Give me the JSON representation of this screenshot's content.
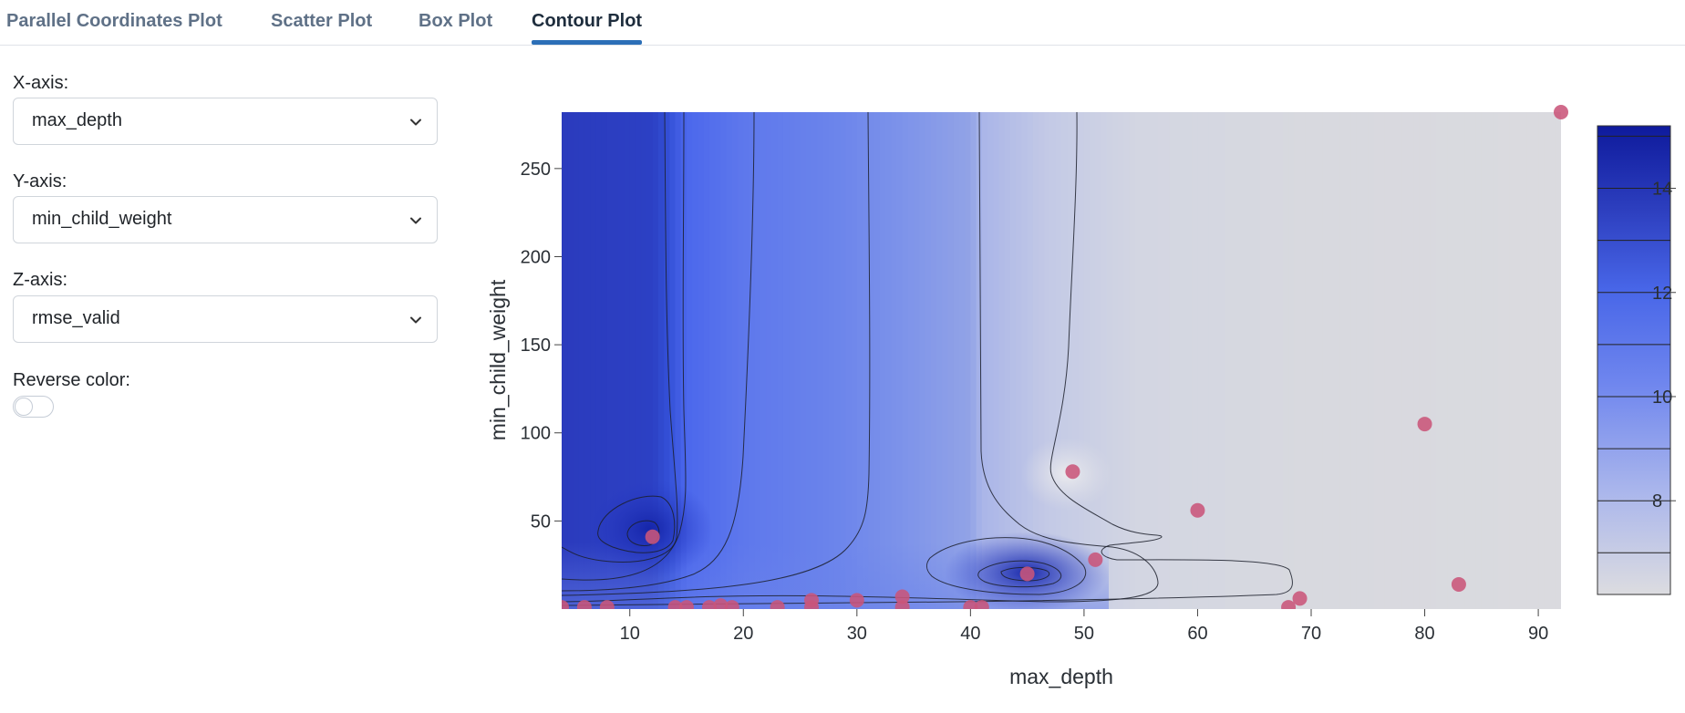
{
  "tabs": [
    {
      "label": "Parallel Coordinates Plot"
    },
    {
      "label": "Scatter Plot"
    },
    {
      "label": "Box Plot"
    },
    {
      "label": "Contour Plot"
    }
  ],
  "active_tab": 3,
  "controls": {
    "x_axis": {
      "label": "X-axis:",
      "value": "max_depth"
    },
    "y_axis": {
      "label": "Y-axis:",
      "value": "min_child_weight"
    },
    "z_axis": {
      "label": "Z-axis:",
      "value": "rmse_valid"
    },
    "reverse_color": {
      "label": "Reverse color:",
      "on": false
    }
  },
  "icons": {
    "dropdown": "chevron-down-icon"
  },
  "colors": {
    "accent": "#2c6fb7",
    "marker": "#c9557a",
    "scale_low": "#dcdce0",
    "scale_high": "#0e1a9c"
  },
  "chart_data": {
    "type": "contour",
    "title": "",
    "xlabel": "max_depth",
    "ylabel": "min_child_weight",
    "xlim": [
      4,
      92
    ],
    "ylim": [
      0,
      282
    ],
    "xticks": [
      10,
      20,
      30,
      40,
      50,
      60,
      70,
      80,
      90
    ],
    "yticks": [
      50,
      100,
      150,
      200,
      250
    ],
    "colorbar": {
      "range": [
        6.2,
        15.2
      ],
      "ticks": [
        8,
        10,
        12,
        14
      ],
      "levels": [
        7,
        8,
        9,
        10,
        11,
        12,
        13,
        14,
        15
      ]
    },
    "z_label": "rmse_valid",
    "points": [
      {
        "x": 4,
        "y": 1
      },
      {
        "x": 6,
        "y": 1
      },
      {
        "x": 8,
        "y": 1
      },
      {
        "x": 12,
        "y": 41
      },
      {
        "x": 14,
        "y": 1
      },
      {
        "x": 15,
        "y": 1
      },
      {
        "x": 17,
        "y": 1
      },
      {
        "x": 18,
        "y": 2
      },
      {
        "x": 19,
        "y": 1
      },
      {
        "x": 23,
        "y": 1
      },
      {
        "x": 26,
        "y": 1
      },
      {
        "x": 26,
        "y": 5
      },
      {
        "x": 30,
        "y": 5
      },
      {
        "x": 34,
        "y": 1
      },
      {
        "x": 34,
        "y": 7
      },
      {
        "x": 40,
        "y": 1
      },
      {
        "x": 41,
        "y": 1
      },
      {
        "x": 45,
        "y": 20
      },
      {
        "x": 49,
        "y": 78
      },
      {
        "x": 51,
        "y": 28
      },
      {
        "x": 60,
        "y": 56
      },
      {
        "x": 68,
        "y": 1
      },
      {
        "x": 69,
        "y": 6
      },
      {
        "x": 80,
        "y": 105
      },
      {
        "x": 83,
        "y": 14
      },
      {
        "x": 92,
        "y": 282
      }
    ],
    "notable_points": [
      {
        "x": 12,
        "y": 41,
        "z": 15
      },
      {
        "x": 45,
        "y": 20,
        "z": 15
      },
      {
        "x": 4,
        "y": 280,
        "z": 13
      }
    ]
  }
}
